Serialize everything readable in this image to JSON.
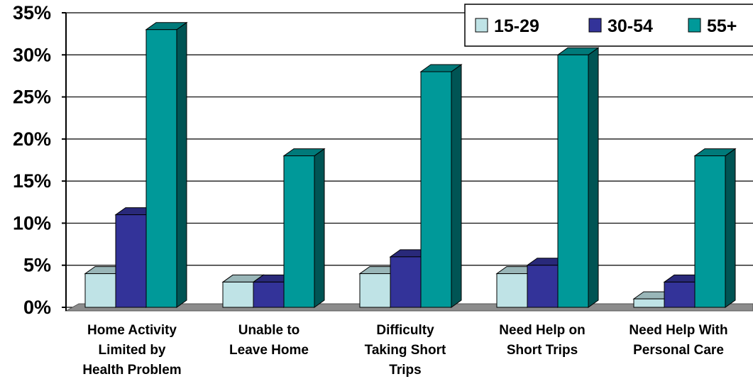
{
  "chart_data": {
    "type": "bar",
    "title": "",
    "xlabel": "",
    "ylabel": "",
    "ylim": [
      0,
      35
    ],
    "y_ticks": [
      "0%",
      "5%",
      "10%",
      "15%",
      "20%",
      "25%",
      "30%",
      "35%"
    ],
    "grid": true,
    "legend_position": "top-right",
    "categories": [
      [
        "Home Activity",
        "Limited by",
        "Health Problem"
      ],
      [
        "Unable to",
        "Leave Home"
      ],
      [
        "Difficulty",
        "Taking Short",
        "Trips"
      ],
      [
        "Need Help on",
        "Short Trips"
      ],
      [
        "Need Help With",
        "Personal Care"
      ]
    ],
    "series": [
      {
        "name": "15-29",
        "color": "#bfe3e6",
        "values": [
          4,
          3,
          4,
          4,
          1
        ]
      },
      {
        "name": "30-54",
        "color": "#333399",
        "values": [
          11,
          3,
          6,
          5,
          3
        ]
      },
      {
        "name": "55+",
        "color": "#009999",
        "values": [
          33,
          18,
          28,
          30,
          18
        ]
      }
    ]
  }
}
